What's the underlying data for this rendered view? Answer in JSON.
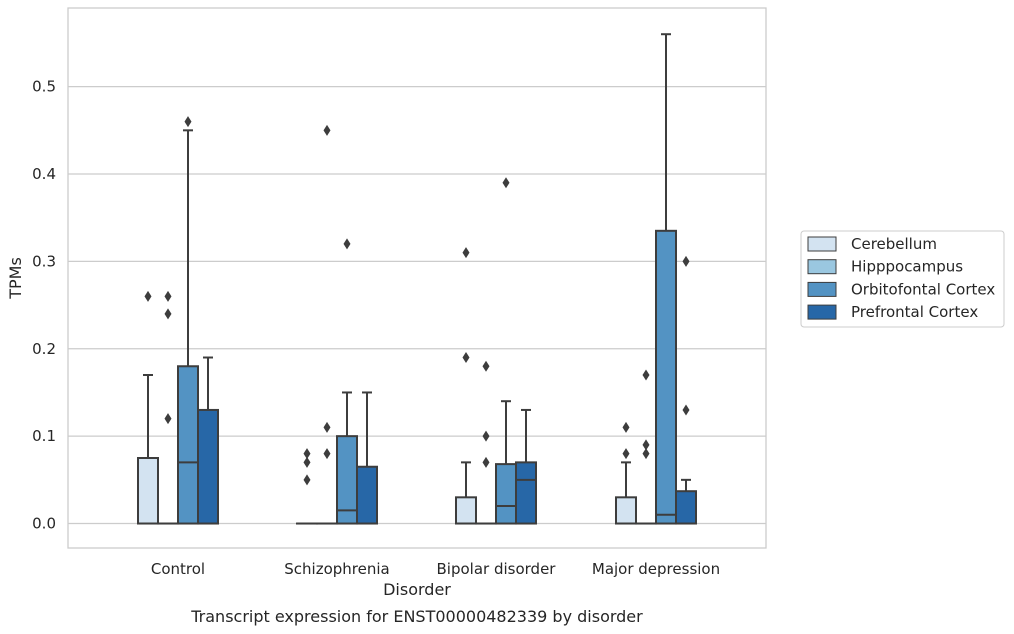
{
  "chart_data": {
    "type": "box",
    "caption": "Transcript expression for ENST00000482339 by disorder",
    "xlabel": "Disorder",
    "ylabel": "TPMs",
    "ylim": [
      -0.028,
      0.59
    ],
    "yticks": [
      0.0,
      0.1,
      0.2,
      0.3,
      0.4,
      0.5
    ],
    "ytick_labels": [
      "0.0",
      "0.1",
      "0.2",
      "0.3",
      "0.4",
      "0.5"
    ],
    "grid": "horizontal",
    "legend_position": "right",
    "categories": [
      "Control",
      "Schizophrenia",
      "Bipolar disorder",
      "Major depression"
    ],
    "series": [
      {
        "name": "Cerebellum",
        "color": "#d3e3f1",
        "boxes": [
          {
            "whislo": 0,
            "q1": 0,
            "med": 0,
            "q3": 0.075,
            "whishi": 0.17,
            "fliers": [
              0.26
            ]
          },
          {
            "whislo": 0,
            "q1": 0,
            "med": 0,
            "q3": 0,
            "whishi": 0,
            "fliers": [
              0.05,
              0.07,
              0.08
            ]
          },
          {
            "whislo": 0,
            "q1": 0,
            "med": 0,
            "q3": 0.03,
            "whishi": 0.07,
            "fliers": [
              0.19,
              0.31
            ]
          },
          {
            "whislo": 0,
            "q1": 0,
            "med": 0,
            "q3": 0.03,
            "whishi": 0.07,
            "fliers": [
              0.08,
              0.11
            ]
          }
        ]
      },
      {
        "name": "Hipppocampus",
        "color": "#9ac7e0",
        "boxes": [
          {
            "whislo": 0,
            "q1": 0,
            "med": 0,
            "q3": 0,
            "whishi": 0,
            "fliers": [
              0.12,
              0.24,
              0.26
            ]
          },
          {
            "whislo": 0,
            "q1": 0,
            "med": 0,
            "q3": 0,
            "whishi": 0,
            "fliers": [
              0.08,
              0.11,
              0.45
            ]
          },
          {
            "whislo": 0,
            "q1": 0,
            "med": 0,
            "q3": 0,
            "whishi": 0,
            "fliers": [
              0.07,
              0.1,
              0.18
            ]
          },
          {
            "whislo": 0,
            "q1": 0,
            "med": 0,
            "q3": 0,
            "whishi": 0,
            "fliers": [
              0.08,
              0.09,
              0.17
            ]
          }
        ]
      },
      {
        "name": "Orbitofontal Cortex",
        "color": "#5393c3",
        "boxes": [
          {
            "whislo": 0,
            "q1": 0,
            "med": 0.07,
            "q3": 0.18,
            "whishi": 0.45,
            "fliers": [
              0.46
            ]
          },
          {
            "whislo": 0,
            "q1": 0,
            "med": 0.015,
            "q3": 0.1,
            "whishi": 0.15,
            "fliers": [
              0.32
            ]
          },
          {
            "whislo": 0,
            "q1": 0,
            "med": 0.02,
            "q3": 0.068,
            "whishi": 0.14,
            "fliers": [
              0.39
            ]
          },
          {
            "whislo": 0,
            "q1": 0,
            "med": 0.01,
            "q3": 0.335,
            "whishi": 0.56,
            "fliers": []
          }
        ]
      },
      {
        "name": "Prefrontal Cortex",
        "color": "#2767a7",
        "boxes": [
          {
            "whislo": 0,
            "q1": 0,
            "med": 0,
            "q3": 0.13,
            "whishi": 0.19,
            "fliers": []
          },
          {
            "whislo": 0,
            "q1": 0,
            "med": 0,
            "q3": 0.065,
            "whishi": 0.15,
            "fliers": []
          },
          {
            "whislo": 0,
            "q1": 0,
            "med": 0.05,
            "q3": 0.07,
            "whishi": 0.13,
            "fliers": []
          },
          {
            "whislo": 0,
            "q1": 0,
            "med": 0,
            "q3": 0.037,
            "whishi": 0.05,
            "fliers": [
              0.13,
              0.3
            ]
          }
        ]
      }
    ]
  }
}
